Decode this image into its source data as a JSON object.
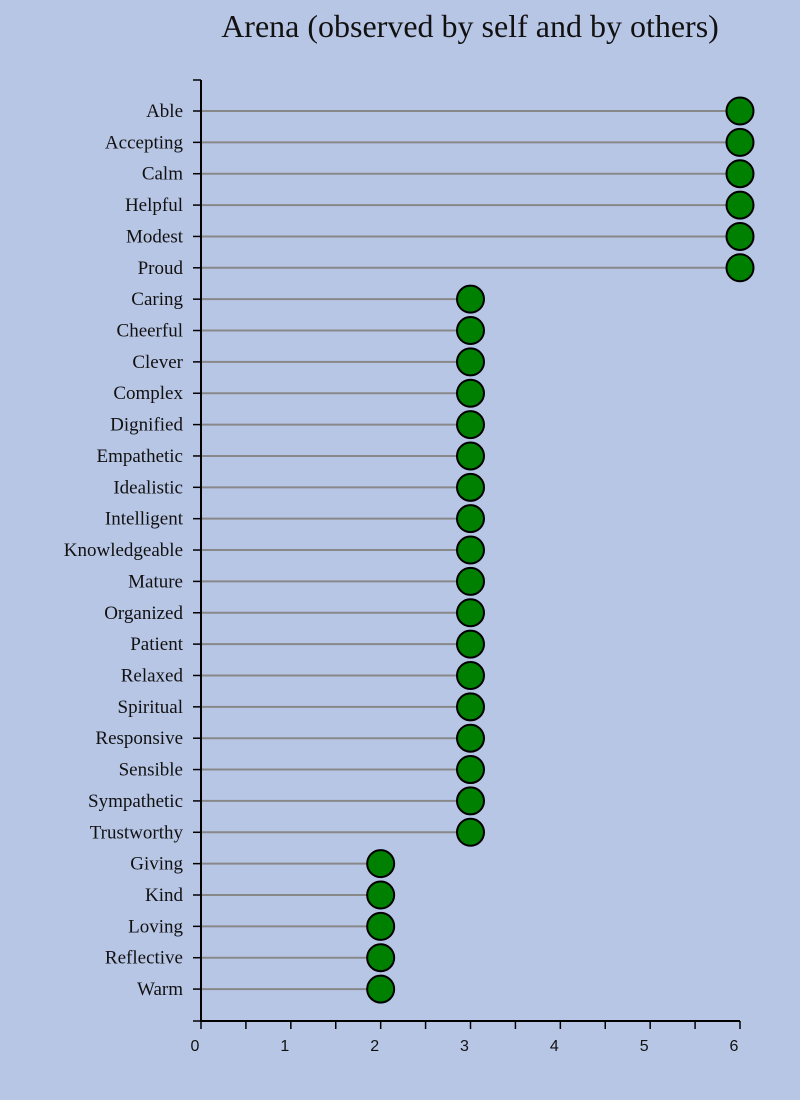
{
  "chart_data": {
    "type": "lollipop",
    "title": "Arena (observed by self and by others)",
    "xlabel": "",
    "ylabel": "",
    "xlim": [
      0,
      6
    ],
    "x_ticks": [
      0,
      1,
      2,
      3,
      4,
      5,
      6
    ],
    "x_minor_tick_step": 0.5,
    "grid": false,
    "categories": [
      "Able",
      "Accepting",
      "Calm",
      "Helpful",
      "Modest",
      "Proud",
      "Caring",
      "Cheerful",
      "Clever",
      "Complex",
      "Dignified",
      "Empathetic",
      "Idealistic",
      "Intelligent",
      "Knowledgeable",
      "Mature",
      "Organized",
      "Patient",
      "Relaxed",
      "Spiritual",
      "Responsive",
      "Sensible",
      "Sympathetic",
      "Trustworthy",
      "Giving",
      "Kind",
      "Loving",
      "Reflective",
      "Warm"
    ],
    "values": [
      6,
      6,
      6,
      6,
      6,
      6,
      3,
      3,
      3,
      3,
      3,
      3,
      3,
      3,
      3,
      3,
      3,
      3,
      3,
      3,
      3,
      3,
      3,
      3,
      2,
      2,
      2,
      2,
      2
    ],
    "colors": {
      "background": "#b8c6e6",
      "marker_fill": "#008000",
      "marker_stroke": "#000000",
      "stem": "#888888",
      "axis": "#000000"
    }
  }
}
